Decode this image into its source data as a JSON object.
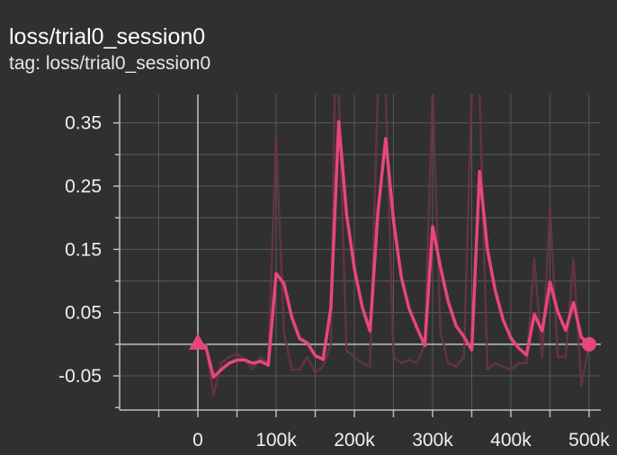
{
  "header": {
    "title": "loss/trial0_session0",
    "tag": "tag: loss/trial0_session0"
  },
  "colors": {
    "background": "#303030",
    "smoothed_line": "#e8457f",
    "raw_line": "#6b3446",
    "grid": "#595959",
    "zero_axis": "#a0a0a0"
  },
  "chart_data": {
    "type": "line",
    "title": "loss/trial0_session0",
    "xlabel": "",
    "ylabel": "",
    "xlim": [
      -100000,
      515000
    ],
    "ylim": [
      -0.104,
      0.395
    ],
    "x_ticks": [
      0,
      100000,
      200000,
      300000,
      400000,
      500000
    ],
    "x_tick_labels": [
      "0",
      "100k",
      "200k",
      "300k",
      "400k",
      "500k"
    ],
    "y_ticks": [
      -0.05,
      0.05,
      0.15,
      0.25,
      0.35
    ],
    "y_tick_labels": [
      "-0.05",
      "0.05",
      "0.15",
      "0.25",
      "0.35"
    ],
    "grid": true,
    "series": [
      {
        "style": "raw",
        "x": [
          0,
          10000,
          20000,
          30000,
          40000,
          50000,
          60000,
          70000,
          80000,
          90000,
          100000,
          110000,
          120000,
          130000,
          140000,
          150000,
          160000,
          170000,
          175000,
          180000,
          190000,
          200000,
          210000,
          220000,
          230000,
          240000,
          250000,
          260000,
          270000,
          280000,
          290000,
          300000,
          310000,
          320000,
          330000,
          340000,
          350000,
          360000,
          370000,
          380000,
          390000,
          400000,
          410000,
          420000,
          430000,
          440000,
          450000,
          460000,
          470000,
          480000,
          490000,
          500000
        ],
        "y": [
          0.0,
          0.0,
          -0.08,
          -0.03,
          -0.02,
          -0.015,
          -0.025,
          -0.04,
          -0.02,
          -0.03,
          0.325,
          0.02,
          -0.04,
          -0.04,
          -0.02,
          -0.045,
          -0.035,
          0.0,
          0.4,
          0.4,
          -0.01,
          -0.02,
          -0.03,
          -0.035,
          0.4,
          0.4,
          -0.02,
          -0.03,
          -0.025,
          -0.03,
          0.0,
          0.4,
          0.02,
          -0.03,
          -0.035,
          -0.02,
          0.4,
          0.4,
          -0.04,
          -0.03,
          -0.035,
          -0.04,
          -0.03,
          -0.03,
          0.135,
          -0.02,
          0.215,
          -0.02,
          -0.02,
          0.135,
          -0.065,
          0.0
        ]
      },
      {
        "style": "smoothed",
        "x": [
          0,
          10000,
          20000,
          30000,
          40000,
          50000,
          60000,
          70000,
          80000,
          90000,
          100000,
          110000,
          120000,
          130000,
          140000,
          150000,
          160000,
          170000,
          180000,
          190000,
          200000,
          210000,
          220000,
          230000,
          240000,
          250000,
          260000,
          270000,
          280000,
          290000,
          300000,
          310000,
          320000,
          330000,
          340000,
          350000,
          360000,
          370000,
          380000,
          390000,
          400000,
          410000,
          420000,
          430000,
          440000,
          450000,
          460000,
          470000,
          480000,
          490000,
          500000
        ],
        "y": [
          0.0,
          -0.003,
          -0.052,
          -0.04,
          -0.03,
          -0.025,
          -0.025,
          -0.03,
          -0.027,
          -0.033,
          0.112,
          0.096,
          0.043,
          0.009,
          0.002,
          -0.018,
          -0.024,
          0.058,
          0.352,
          0.206,
          0.12,
          0.059,
          0.021,
          0.207,
          0.325,
          0.196,
          0.106,
          0.056,
          0.026,
          -0.002,
          0.186,
          0.122,
          0.067,
          0.029,
          0.012,
          -0.009,
          0.273,
          0.15,
          0.085,
          0.039,
          0.01,
          -0.006,
          -0.017,
          0.047,
          0.021,
          0.098,
          0.051,
          0.022,
          0.066,
          0.011,
          0.0
        ]
      }
    ],
    "markers": [
      {
        "shape": "triangle",
        "x": 0,
        "y": 0.0
      },
      {
        "shape": "circle",
        "x": 500000,
        "y": 0.0
      }
    ]
  }
}
